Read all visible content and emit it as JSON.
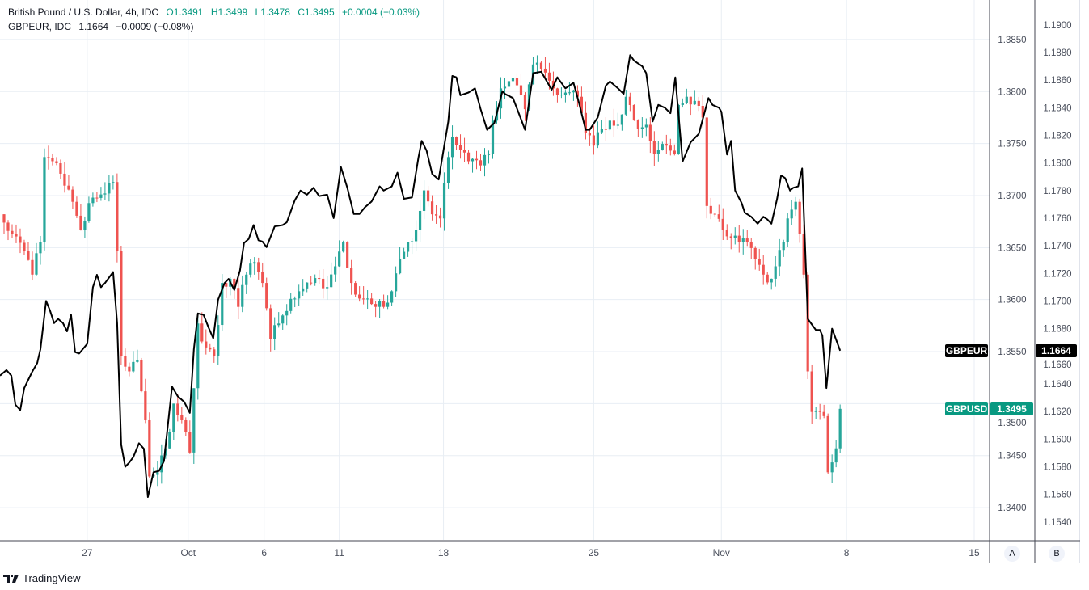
{
  "legend": {
    "main_title": "British Pound / U.S. Dollar, 4h, IDC",
    "open": "O1.3491",
    "high": "H1.3499",
    "low": "L1.3478",
    "close": "C1.3495",
    "change": "+0.0004 (+0.03%)",
    "compare_title": "GBPEUR, IDC",
    "compare_value": "1.1664",
    "compare_change": "−0.0009 (−0.08%)"
  },
  "badges": {
    "gbpeur_label": "GBPEUR",
    "gbpeur_value": "1.1664",
    "gbpusd_label": "GBPUSD",
    "gbpusd_value": "1.3495"
  },
  "axis_buttons": {
    "a": "A",
    "b": "B"
  },
  "brand": "TradingView",
  "colors": {
    "up": "#26a69a",
    "down": "#ef5350",
    "compare": "#000000",
    "grid": "#e8eef4",
    "usd_badge": "#089981",
    "eur_badge": "#000000"
  },
  "chart_data": {
    "type": "candlestick+line",
    "title": "British Pound / U.S. Dollar, 4h, IDC",
    "grid": true,
    "x_axis": {
      "unit": "4h bar index",
      "range": [
        -1,
        244
      ],
      "ticks": [
        {
          "bar": 20.6,
          "label": "27"
        },
        {
          "bar": 45.6,
          "label": "Oct"
        },
        {
          "bar": 64.4,
          "label": "6"
        },
        {
          "bar": 83,
          "label": "11"
        },
        {
          "bar": 108.8,
          "label": "18"
        },
        {
          "bar": 146,
          "label": "25"
        },
        {
          "bar": 177.6,
          "label": "Nov"
        },
        {
          "bar": 208.6,
          "label": "8"
        },
        {
          "bar": 240.2,
          "label": "15"
        }
      ]
    },
    "y_axis_gbpusd": {
      "ylim": [
        1.3369,
        1.3888
      ],
      "ticks": [
        "1.3400",
        "1.3450",
        "1.3500",
        "1.3550",
        "1.3600",
        "1.3650",
        "1.3700",
        "1.3750",
        "1.3800",
        "1.3850"
      ]
    },
    "y_axis_gbpeur": {
      "ylim": [
        1.1527,
        1.1918
      ],
      "ticks": [
        "1.1540",
        "1.1560",
        "1.1580",
        "1.1600",
        "1.1620",
        "1.1640",
        "1.1660",
        "1.1680",
        "1.1700",
        "1.1720",
        "1.1740",
        "1.1760",
        "1.1780",
        "1.1800",
        "1.1820",
        "1.1840",
        "1.1860",
        "1.1880",
        "1.1900"
      ]
    },
    "series": [
      {
        "name": "GBPUSD",
        "kind": "candles",
        "last": 1.3495,
        "close_keypoints": [
          [
            0,
            1.3674
          ],
          [
            2,
            1.3663
          ],
          [
            5,
            1.3647
          ],
          [
            7,
            1.3624
          ],
          [
            9,
            1.3655
          ],
          [
            10,
            1.3737
          ],
          [
            12,
            1.3733
          ],
          [
            14,
            1.3721
          ],
          [
            17,
            1.3694
          ],
          [
            19,
            1.3667
          ],
          [
            22,
            1.3698
          ],
          [
            25,
            1.3702
          ],
          [
            27,
            1.3713
          ],
          [
            28,
            1.3647
          ],
          [
            29,
            1.3546
          ],
          [
            31,
            1.3531
          ],
          [
            33,
            1.3542
          ],
          [
            35,
            1.3484
          ],
          [
            36,
            1.343
          ],
          [
            38,
            1.3434
          ],
          [
            40,
            1.3457
          ],
          [
            42,
            1.35
          ],
          [
            44,
            1.3484
          ],
          [
            46,
            1.3453
          ],
          [
            48,
            1.3577
          ],
          [
            50,
            1.3554
          ],
          [
            52,
            1.3546
          ],
          [
            54,
            1.3616
          ],
          [
            56,
            1.362
          ],
          [
            58,
            1.3593
          ],
          [
            60,
            1.3624
          ],
          [
            62,
            1.3636
          ],
          [
            64,
            1.3616
          ],
          [
            66,
            1.3562
          ],
          [
            68,
            1.3577
          ],
          [
            70,
            1.3589
          ],
          [
            73,
            1.3608
          ],
          [
            76,
            1.3616
          ],
          [
            78,
            1.362
          ],
          [
            80,
            1.3612
          ],
          [
            82,
            1.3632
          ],
          [
            84,
            1.3655
          ],
          [
            86,
            1.3616
          ],
          [
            88,
            1.3601
          ],
          [
            90,
            1.3601
          ],
          [
            92,
            1.3593
          ],
          [
            94,
            1.3593
          ],
          [
            96,
            1.3608
          ],
          [
            98,
            1.3639
          ],
          [
            100,
            1.3655
          ],
          [
            102,
            1.3667
          ],
          [
            104,
            1.3705
          ],
          [
            106,
            1.3682
          ],
          [
            108,
            1.3678
          ],
          [
            110,
            1.3737
          ],
          [
            111,
            1.3756
          ],
          [
            113,
            1.3744
          ],
          [
            115,
            1.3733
          ],
          [
            118,
            1.3729
          ],
          [
            120,
            1.374
          ],
          [
            121,
            1.3772
          ],
          [
            123,
            1.3803
          ],
          [
            125,
            1.381
          ],
          [
            127,
            1.3806
          ],
          [
            129,
            1.3783
          ],
          [
            131,
            1.3826
          ],
          [
            133,
            1.3822
          ],
          [
            136,
            1.3803
          ],
          [
            139,
            1.3799
          ],
          [
            142,
            1.3795
          ],
          [
            144,
            1.376
          ],
          [
            146,
            1.3748
          ],
          [
            148,
            1.3764
          ],
          [
            150,
            1.3772
          ],
          [
            152,
            1.3768
          ],
          [
            154,
            1.3795
          ],
          [
            155,
            1.3787
          ],
          [
            157,
            1.3764
          ],
          [
            159,
            1.3768
          ],
          [
            161,
            1.374
          ],
          [
            162,
            1.3744
          ],
          [
            164,
            1.3748
          ],
          [
            166,
            1.374
          ],
          [
            167,
            1.3787
          ],
          [
            169,
            1.3795
          ],
          [
            171,
            1.3791
          ],
          [
            173,
            1.3775
          ],
          [
            174,
            1.369
          ],
          [
            176,
            1.3682
          ],
          [
            178,
            1.3667
          ],
          [
            180,
            1.3659
          ],
          [
            182,
            1.3655
          ],
          [
            184,
            1.3655
          ],
          [
            186,
            1.3639
          ],
          [
            188,
            1.3624
          ],
          [
            190,
            1.362
          ],
          [
            191,
            1.3632
          ],
          [
            193,
            1.3655
          ],
          [
            194,
            1.3678
          ],
          [
            196,
            1.3694
          ],
          [
            197,
            1.3663
          ],
          [
            198,
            1.3624
          ],
          [
            199,
            1.3531
          ],
          [
            200,
            1.3492
          ],
          [
            202,
            1.3492
          ],
          [
            203,
            1.3488
          ],
          [
            204,
            1.3434
          ],
          [
            206,
            1.3457
          ],
          [
            207,
            1.3495
          ]
        ]
      },
      {
        "name": "GBPEUR",
        "kind": "line",
        "last": 1.1664,
        "points": [
          [
            -1,
            1.1646
          ],
          [
            0.6,
            1.165
          ],
          [
            1.8,
            1.1646
          ],
          [
            2.8,
            1.1625
          ],
          [
            4,
            1.1621
          ],
          [
            5,
            1.1637
          ],
          [
            7,
            1.1649
          ],
          [
            8.2,
            1.1655
          ],
          [
            9,
            1.1665
          ],
          [
            10.4,
            1.17
          ],
          [
            11.4,
            1.1693
          ],
          [
            12.4,
            1.1684
          ],
          [
            13.4,
            1.1687
          ],
          [
            14.6,
            1.1684
          ],
          [
            15.6,
            1.1678
          ],
          [
            16.6,
            1.169
          ],
          [
            17.6,
            1.1663
          ],
          [
            18.6,
            1.1662
          ],
          [
            20.6,
            1.1669
          ],
          [
            22,
            1.171
          ],
          [
            23,
            1.1719
          ],
          [
            24,
            1.171
          ],
          [
            25,
            1.1713
          ],
          [
            27,
            1.1721
          ],
          [
            28,
            1.1684
          ],
          [
            29,
            1.1596
          ],
          [
            30,
            1.158
          ],
          [
            31,
            1.1583
          ],
          [
            32,
            1.1587
          ],
          [
            33.4,
            1.1597
          ],
          [
            34.6,
            1.1593
          ],
          [
            35.6,
            1.1558
          ],
          [
            37,
            1.1576
          ],
          [
            38.4,
            1.1577
          ],
          [
            39.6,
            1.1584
          ],
          [
            41.6,
            1.1638
          ],
          [
            43,
            1.1631
          ],
          [
            44.6,
            1.1627
          ],
          [
            46,
            1.1619
          ],
          [
            47,
            1.1665
          ],
          [
            48,
            1.1691
          ],
          [
            49.4,
            1.169
          ],
          [
            50.6,
            1.1681
          ],
          [
            51.8,
            1.1673
          ],
          [
            53,
            1.1701
          ],
          [
            54.6,
            1.1713
          ],
          [
            55.6,
            1.1716
          ],
          [
            57,
            1.1708
          ],
          [
            58.4,
            1.1722
          ],
          [
            59.4,
            1.1742
          ],
          [
            60.6,
            1.1745
          ],
          [
            61.8,
            1.1755
          ],
          [
            63,
            1.1744
          ],
          [
            64,
            1.1743
          ],
          [
            65,
            1.1739
          ],
          [
            67,
            1.1754
          ],
          [
            69,
            1.1755
          ],
          [
            70,
            1.1757
          ],
          [
            72,
            1.1773
          ],
          [
            73.4,
            1.178
          ],
          [
            75,
            1.1777
          ],
          [
            76.6,
            1.1782
          ],
          [
            78,
            1.1776
          ],
          [
            80,
            1.1777
          ],
          [
            81.6,
            1.176
          ],
          [
            83.4,
            1.1797
          ],
          [
            85,
            1.1782
          ],
          [
            86.6,
            1.1763
          ],
          [
            88,
            1.1763
          ],
          [
            89.4,
            1.1768
          ],
          [
            91,
            1.1772
          ],
          [
            93,
            1.1783
          ],
          [
            94,
            1.178
          ],
          [
            96,
            1.1783
          ],
          [
            97.4,
            1.1793
          ],
          [
            99,
            1.1774
          ],
          [
            101,
            1.1775
          ],
          [
            102.6,
            1.1804
          ],
          [
            103.4,
            1.1816
          ],
          [
            104.6,
            1.1809
          ],
          [
            106,
            1.1792
          ],
          [
            107.6,
            1.1788
          ],
          [
            110,
            1.183
          ],
          [
            111,
            1.1863
          ],
          [
            112,
            1.1862
          ],
          [
            113,
            1.1849
          ],
          [
            115,
            1.1851
          ],
          [
            116.6,
            1.1854
          ],
          [
            118,
            1.1839
          ],
          [
            119.6,
            1.1824
          ],
          [
            121.4,
            1.1829
          ],
          [
            123.4,
            1.1852
          ],
          [
            124,
            1.185
          ],
          [
            126,
            1.1847
          ],
          [
            129,
            1.1824
          ],
          [
            131,
            1.1865
          ],
          [
            133,
            1.1866
          ],
          [
            135.6,
            1.1853
          ],
          [
            137,
            1.1862
          ],
          [
            139,
            1.1854
          ],
          [
            141,
            1.1858
          ],
          [
            142.4,
            1.1843
          ],
          [
            144,
            1.1824
          ],
          [
            145,
            1.1824
          ],
          [
            147,
            1.1833
          ],
          [
            149,
            1.1856
          ],
          [
            150,
            1.1859
          ],
          [
            152,
            1.1854
          ],
          [
            153.4,
            1.185
          ],
          [
            155,
            1.1878
          ],
          [
            156,
            1.1874
          ],
          [
            158,
            1.187
          ],
          [
            159,
            1.1865
          ],
          [
            160.6,
            1.183
          ],
          [
            162,
            1.1842
          ],
          [
            163.6,
            1.184
          ],
          [
            165,
            1.1836
          ],
          [
            166.2,
            1.1862
          ],
          [
            168,
            1.1801
          ],
          [
            170,
            1.1815
          ],
          [
            172,
            1.1821
          ],
          [
            174.4,
            1.1847
          ],
          [
            175.4,
            1.1842
          ],
          [
            177,
            1.184
          ],
          [
            177.6,
            1.1837
          ],
          [
            179,
            1.1806
          ],
          [
            180,
            1.1816
          ],
          [
            181,
            1.178
          ],
          [
            182.6,
            1.1771
          ],
          [
            183.4,
            1.1764
          ],
          [
            185,
            1.1761
          ],
          [
            186.6,
            1.1756
          ],
          [
            188,
            1.1761
          ],
          [
            189,
            1.1759
          ],
          [
            190,
            1.1756
          ],
          [
            191.4,
            1.1774
          ],
          [
            192.4,
            1.1791
          ],
          [
            193.4,
            1.1789
          ],
          [
            194.6,
            1.178
          ],
          [
            195.4,
            1.1782
          ],
          [
            196.6,
            1.1783
          ],
          [
            197.6,
            1.1796
          ],
          [
            199,
            1.1687
          ],
          [
            200,
            1.1683
          ],
          [
            201,
            1.1679
          ],
          [
            202,
            1.1679
          ],
          [
            202.6,
            1.1675
          ],
          [
            203.6,
            1.1637
          ],
          [
            205,
            1.168
          ],
          [
            207,
            1.1664
          ]
        ]
      }
    ]
  }
}
